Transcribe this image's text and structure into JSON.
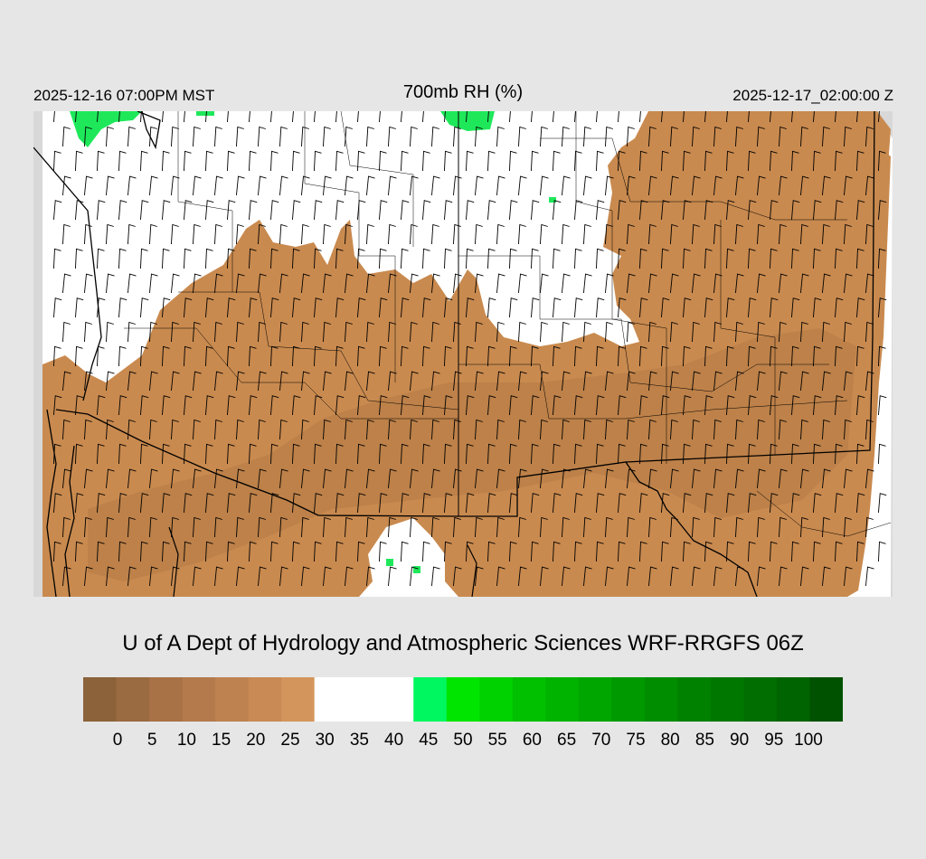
{
  "header": {
    "valid_local": "2025-12-16 07:00PM MST",
    "title": "700mb RH (%)",
    "valid_utc": "2025-12-17_02:00:00 Z"
  },
  "credit": "U of A Dept of Hydrology and Atmospheric Sciences WRF-RRGFS 06Z",
  "map": {
    "field": "700mb relative humidity",
    "overlay": "wind barbs",
    "region": "Southwestern United States",
    "colors": {
      "background": "#e6e6e6",
      "outside_domain": "#d8d8d8",
      "dry_field": "#c98a4f",
      "dry_field_dark": "#b37a46",
      "clear": "#ffffff",
      "moist": "#1ee85a",
      "boundaries": "#000000"
    }
  },
  "colorbar": {
    "colors": [
      "#8b6239",
      "#9a6a40",
      "#a87146",
      "#b47a4b",
      "#be8250",
      "#c98a55",
      "#d4955c",
      "#ffffff",
      "#ffffff",
      "#ffffff",
      "#00f760",
      "#00e500",
      "#00d200",
      "#00c000",
      "#00b300",
      "#00a600",
      "#009a00",
      "#008d00",
      "#008100",
      "#007800",
      "#006e00",
      "#006400",
      "#005200"
    ],
    "labels": [
      "0",
      "5",
      "10",
      "15",
      "20",
      "25",
      "30",
      "35",
      "40",
      "45",
      "50",
      "55",
      "60",
      "65",
      "70",
      "75",
      "80",
      "85",
      "90",
      "95",
      "100"
    ]
  }
}
